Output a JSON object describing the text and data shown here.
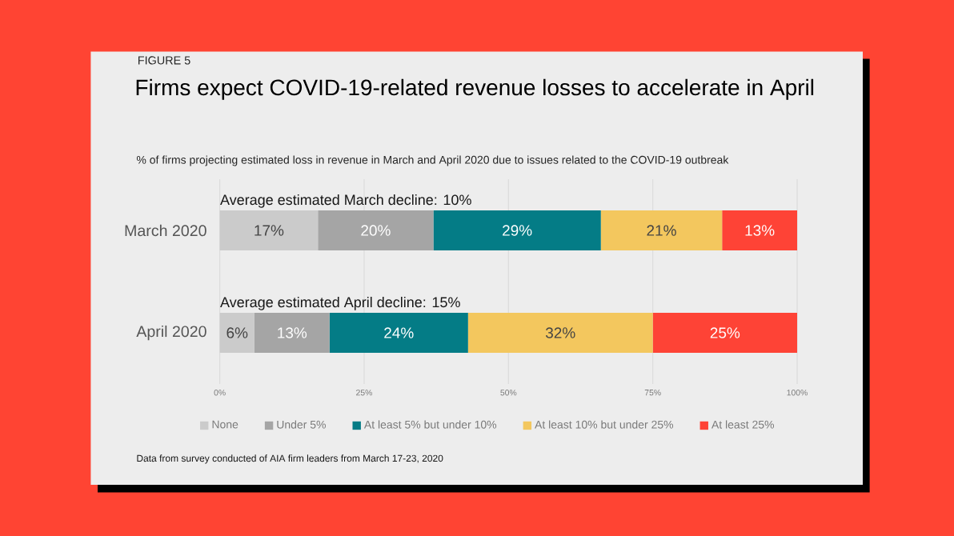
{
  "chart_data": {
    "type": "bar",
    "orientation": "horizontal",
    "stacked": true,
    "title": "Firms expect COVID-19-related revenue losses to accelerate in April",
    "subtitle": "% of firms projecting estimated loss in revenue in March and April 2020 due to issues related to the COVID-19 outbreak",
    "annotations": [
      "FIGURE 5",
      "Average estimated March decline: 10%",
      "Average estimated April decline: 15%",
      "Data from survey conducted of AIA firm leaders from March 17-23, 2020"
    ],
    "categories": [
      "March 2020",
      "April 2020"
    ],
    "series": [
      {
        "name": "None",
        "color": "#cbcbcb",
        "values": [
          17,
          6
        ],
        "value_labels": [
          "17%",
          "6%"
        ]
      },
      {
        "name": "Under 5%",
        "color": "#a5a5a5",
        "values": [
          20,
          13
        ],
        "value_labels": [
          "20%",
          "13%"
        ]
      },
      {
        "name": "At least 5% but under 10%",
        "color": "#047c86",
        "values": [
          29,
          24
        ],
        "value_labels": [
          "29%",
          "24%"
        ]
      },
      {
        "name": "At least 10% but under 25%",
        "color": "#f3c75e",
        "values": [
          21,
          32
        ],
        "value_labels": [
          "21%",
          "32%"
        ]
      },
      {
        "name": "At least 25%",
        "color": "#fe4336",
        "values": [
          13,
          25
        ],
        "value_labels": [
          "13%",
          "25%"
        ]
      }
    ],
    "xlim": [
      0,
      100
    ],
    "xticks": [
      {
        "value": 0,
        "label": "0%"
      },
      {
        "value": 25,
        "label": "25%"
      },
      {
        "value": 50,
        "label": "50%"
      },
      {
        "value": 75,
        "label": "75%"
      },
      {
        "value": 100,
        "label": "100%"
      }
    ],
    "grid": "x",
    "legend": "bottom"
  }
}
